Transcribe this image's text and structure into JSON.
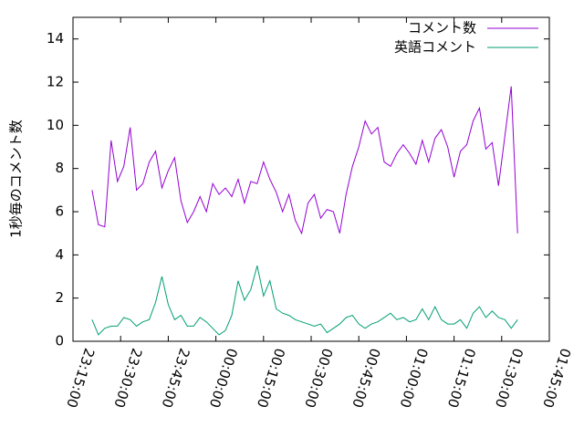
{
  "chart_data": {
    "type": "line",
    "ylabel": "1秒毎のコメント数",
    "x": [
      "23:21:00",
      "23:23:00",
      "23:25:00",
      "23:27:00",
      "23:29:00",
      "23:31:00",
      "23:33:00",
      "23:35:00",
      "23:37:00",
      "23:39:00",
      "23:41:00",
      "23:43:00",
      "23:45:00",
      "23:47:00",
      "23:49:00",
      "23:51:00",
      "23:53:00",
      "23:55:00",
      "23:57:00",
      "23:59:00",
      "00:01:00",
      "00:03:00",
      "00:05:00",
      "00:07:00",
      "00:09:00",
      "00:11:00",
      "00:13:00",
      "00:15:00",
      "00:17:00",
      "00:19:00",
      "00:21:00",
      "00:23:00",
      "00:25:00",
      "00:27:00",
      "00:29:00",
      "00:31:00",
      "00:33:00",
      "00:35:00",
      "00:37:00",
      "00:39:00",
      "00:41:00",
      "00:43:00",
      "00:45:00",
      "00:47:00",
      "00:49:00",
      "00:51:00",
      "00:53:00",
      "00:55:00",
      "00:57:00",
      "00:59:00",
      "01:01:00",
      "01:03:00",
      "01:05:00",
      "01:07:00",
      "01:09:00",
      "01:11:00",
      "01:13:00",
      "01:15:00",
      "01:17:00",
      "01:19:00",
      "01:21:00",
      "01:23:00",
      "01:25:00",
      "01:27:00",
      "01:29:00",
      "01:31:00",
      "01:33:00",
      "01:35:00"
    ],
    "series": [
      {
        "name": "コメント数",
        "color": "#9400d3",
        "values": [
          7.0,
          5.4,
          5.3,
          9.3,
          7.4,
          8.1,
          9.9,
          7.0,
          7.3,
          8.3,
          8.8,
          7.1,
          7.9,
          8.5,
          6.5,
          5.5,
          6.0,
          6.7,
          6.0,
          7.3,
          6.8,
          7.1,
          6.7,
          7.5,
          6.4,
          7.4,
          7.3,
          8.3,
          7.5,
          6.9,
          6.0,
          6.8,
          5.6,
          5.0,
          6.4,
          6.8,
          5.7,
          6.1,
          6.0,
          5.0,
          6.8,
          8.1,
          9.0,
          10.2,
          9.6,
          9.9,
          8.3,
          8.1,
          8.7,
          9.1,
          8.7,
          8.2,
          9.3,
          8.3,
          9.4,
          9.8,
          9.0,
          7.6,
          8.8,
          9.1,
          10.2,
          10.8,
          8.9,
          9.2,
          7.2,
          9.5,
          11.8,
          5.0
        ]
      },
      {
        "name": "英語コメント",
        "color": "#009e73",
        "values": [
          1.0,
          0.3,
          0.6,
          0.7,
          0.7,
          1.1,
          1.0,
          0.7,
          0.9,
          1.0,
          1.8,
          3.0,
          1.7,
          1.0,
          1.2,
          0.7,
          0.7,
          1.1,
          0.9,
          0.6,
          0.3,
          0.5,
          1.2,
          2.8,
          1.9,
          2.4,
          3.5,
          2.1,
          2.8,
          1.5,
          1.3,
          1.2,
          1.0,
          0.9,
          0.8,
          0.7,
          0.8,
          0.4,
          0.6,
          0.8,
          1.1,
          1.2,
          0.8,
          0.6,
          0.8,
          0.9,
          1.1,
          1.3,
          1.0,
          1.1,
          0.9,
          1.0,
          1.5,
          1.0,
          1.6,
          1.0,
          0.8,
          0.8,
          1.0,
          0.6,
          1.3,
          1.6,
          1.1,
          1.4,
          1.1,
          1.0,
          0.6,
          1.0
        ]
      }
    ],
    "xlim": [
      "23:15:00",
      "01:45:00"
    ],
    "xticks": [
      "23:15:00",
      "23:30:00",
      "23:45:00",
      "00:00:00",
      "00:15:00",
      "00:30:00",
      "00:45:00",
      "01:00:00",
      "01:15:00",
      "01:30:00",
      "01:45:00"
    ],
    "ylim": [
      0,
      15
    ],
    "yticks": [
      0,
      2,
      4,
      6,
      8,
      10,
      12,
      14
    ],
    "legend": "top-right",
    "grid": false
  }
}
